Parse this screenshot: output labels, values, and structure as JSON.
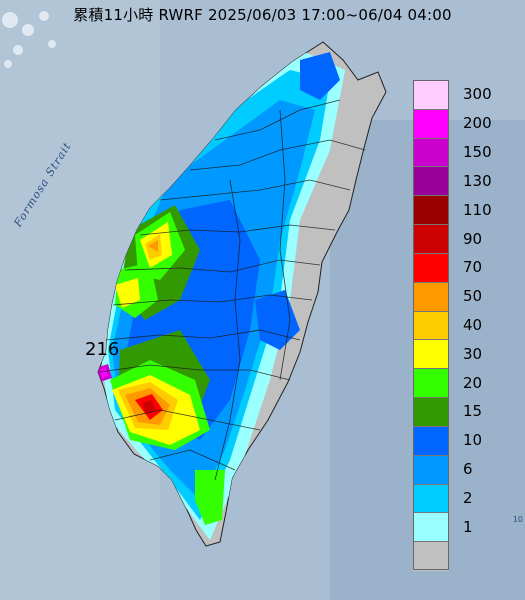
{
  "title": "累積11小時 RWRF 2025/06/03 17:00~06/04 04:00",
  "strait_label": "Formosa Strait",
  "max_label": "216",
  "corner_marker": "10",
  "legend": [
    {
      "label": "300",
      "color": "#ffccff"
    },
    {
      "label": "200",
      "color": "#ff00ff"
    },
    {
      "label": "150",
      "color": "#cc00cc"
    },
    {
      "label": "130",
      "color": "#990099"
    },
    {
      "label": "110",
      "color": "#990000"
    },
    {
      "label": "90",
      "color": "#cc0000"
    },
    {
      "label": "70",
      "color": "#ff0000"
    },
    {
      "label": "50",
      "color": "#ff9900"
    },
    {
      "label": "40",
      "color": "#ffcc00"
    },
    {
      "label": "30",
      "color": "#ffff00"
    },
    {
      "label": "20",
      "color": "#33ff00"
    },
    {
      "label": "15",
      "color": "#339900"
    },
    {
      "label": "10",
      "color": "#0066ff"
    },
    {
      "label": "6",
      "color": "#0099ff"
    },
    {
      "label": "2",
      "color": "#00ccff"
    },
    {
      "label": "1",
      "color": "#99ffff"
    },
    {
      "label": "",
      "color": "#c0c0c0"
    }
  ]
}
